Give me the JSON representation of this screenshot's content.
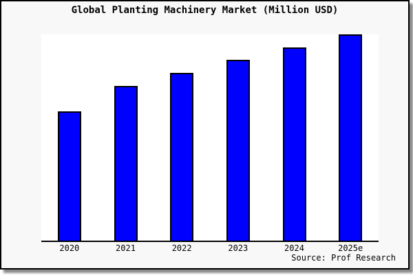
{
  "title": "Global Planting Machinery Market (Million USD)",
  "source_text": "Source: Prof Research",
  "colors": {
    "bar_fill": "#0000ff",
    "bar_border": "#000000",
    "frame_background": "#f8f8f8",
    "plot_background": "#ffffff",
    "axis": "#000000",
    "frame_border": "#000000",
    "shadow": "#8a8a8a",
    "text": "#000000"
  },
  "chart_data": {
    "type": "bar",
    "title": "Global Planting Machinery Market (Million USD)",
    "categories": [
      "2020",
      "2021",
      "2022",
      "2023",
      "2024",
      "2025e"
    ],
    "series": [
      {
        "name": "Global Planting Machinery Market (Million USD)",
        "values": [
          62.7,
          75.0,
          81.3,
          87.7,
          93.7,
          100.0
        ]
      }
    ],
    "xlabel": "",
    "ylabel": "",
    "ylim": [
      0,
      100
    ],
    "grid": false,
    "legend": false,
    "y_axis_tick_labels": false,
    "note": "Y-axis has no tick labels or gridlines; values are relative bar heights estimated from pixels (2025e bar = 100, reaching plot top)."
  }
}
